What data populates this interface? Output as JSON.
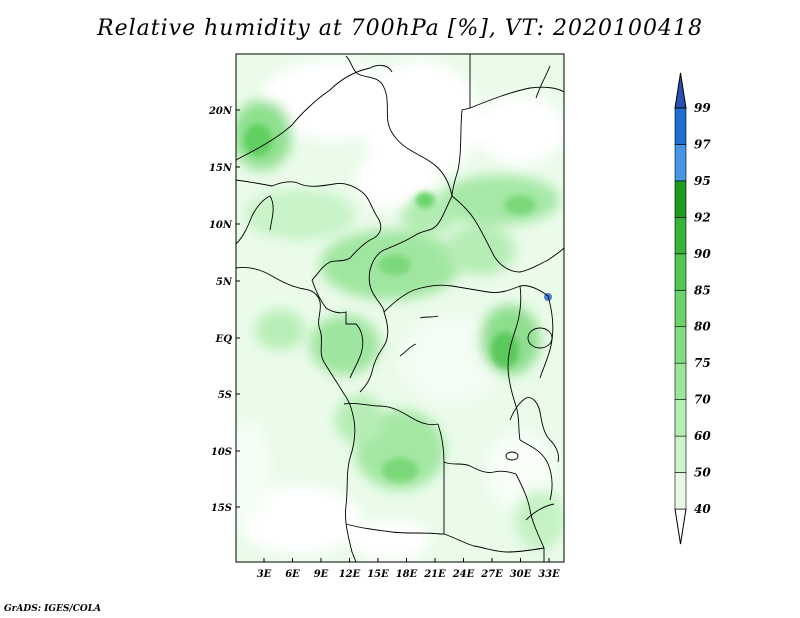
{
  "title": "Relative humidity at 700hPa [%], VT: 2020100418",
  "credit": "GrADS: IGES/COLA",
  "map": {
    "lat_ticks": [
      "20N",
      "15N",
      "10N",
      "5N",
      "EQ",
      "5S",
      "10S",
      "15S"
    ],
    "lon_ticks": [
      "3E",
      "6E",
      "9E",
      "12E",
      "15E",
      "18E",
      "21E",
      "24E",
      "27E",
      "30E",
      "33E"
    ]
  },
  "colorbar": {
    "levels": [
      "40",
      "50",
      "60",
      "70",
      "75",
      "80",
      "85",
      "90",
      "92",
      "95",
      "97",
      "99"
    ],
    "colors": [
      "#ffffff",
      "#e6fae6",
      "#cdf5cd",
      "#b4f0b4",
      "#9be69b",
      "#82dc82",
      "#69d269",
      "#50c850",
      "#37b437",
      "#1e9b1e",
      "#4696e6",
      "#1e6ed2",
      "#2850b4"
    ]
  }
}
